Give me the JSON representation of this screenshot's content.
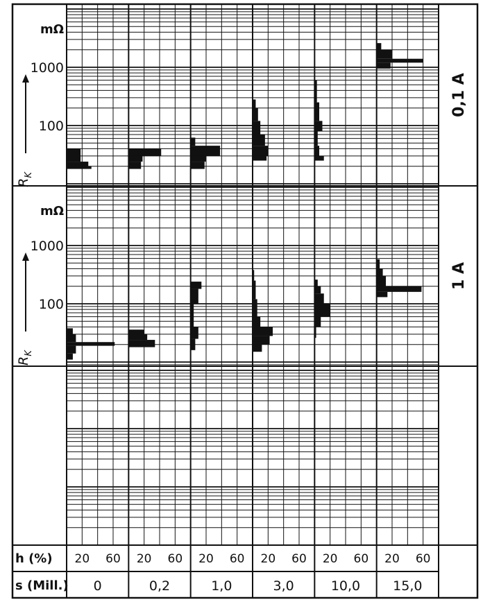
{
  "chart_data": {
    "type": "bar",
    "description_note": "",
    "y_scale": "log",
    "y_unit": "mΩ",
    "y_axis_label": "R",
    "y_axis_label_sub": "K",
    "y_ticks": [
      "1000",
      "100"
    ],
    "x_row_labels": {
      "h": "h (%)",
      "s": "s (Mill.)"
    },
    "h_ticks": [
      "20",
      "60"
    ],
    "groups": [
      "0",
      "0,2",
      "1,0",
      "3,0",
      "10,0",
      "15,0"
    ],
    "panels": [
      {
        "current": "0,1 A",
        "histograms": [
          {
            "group": "0",
            "bins": [
              [
                24,
                40,
                18
              ],
              [
                20,
                24,
                28
              ],
              [
                18,
                20,
                32
              ]
            ]
          },
          {
            "group": "0,2",
            "bins": [
              [
                30,
                40,
                42
              ],
              [
                24,
                30,
                18
              ],
              [
                18,
                24,
                16
              ]
            ]
          },
          {
            "group": "1,0",
            "bins": [
              [
                45,
                62,
                6
              ],
              [
                30,
                45,
                38
              ],
              [
                24,
                30,
                20
              ],
              [
                18,
                24,
                18
              ]
            ]
          },
          {
            "group": "3,0",
            "bins": [
              [
                200,
                280,
                4
              ],
              [
                120,
                200,
                7
              ],
              [
                70,
                120,
                10
              ],
              [
                45,
                70,
                16
              ],
              [
                30,
                45,
                20
              ],
              [
                25,
                30,
                18
              ]
            ]
          },
          {
            "group": "10,0",
            "bins": [
              [
                250,
                600,
                3
              ],
              [
                120,
                250,
                6
              ],
              [
                80,
                120,
                10
              ],
              [
                45,
                80,
                4
              ],
              [
                30,
                45,
                6
              ],
              [
                25,
                30,
                12
              ]
            ]
          },
          {
            "group": "15,0",
            "bins": [
              [
                2000,
                2600,
                6
              ],
              [
                1400,
                2000,
                20
              ],
              [
                1200,
                1400,
                60
              ],
              [
                950,
                1200,
                18
              ]
            ]
          }
        ]
      },
      {
        "current": "1 A",
        "histograms": [
          {
            "group": "0",
            "bins": [
              [
                30,
                38,
                8
              ],
              [
                22,
                30,
                12
              ],
              [
                19,
                22,
                62
              ],
              [
                14,
                19,
                12
              ],
              [
                11,
                14,
                8
              ]
            ]
          },
          {
            "group": "0,2",
            "bins": [
              [
                30,
                36,
                20
              ],
              [
                24,
                30,
                24
              ],
              [
                18,
                24,
                34
              ]
            ]
          },
          {
            "group": "1,0",
            "bins": [
              [
                180,
                240,
                14
              ],
              [
                100,
                180,
                10
              ],
              [
                70,
                100,
                4
              ],
              [
                40,
                70,
                4
              ],
              [
                25,
                40,
                10
              ],
              [
                16,
                25,
                6
              ]
            ]
          },
          {
            "group": "3,0",
            "bins": [
              [
                250,
                380,
                2
              ],
              [
                120,
                250,
                4
              ],
              [
                60,
                120,
                6
              ],
              [
                40,
                60,
                10
              ],
              [
                28,
                40,
                26
              ],
              [
                20,
                28,
                22
              ],
              [
                15,
                20,
                12
              ]
            ]
          },
          {
            "group": "10,0",
            "bins": [
              [
                200,
                260,
                4
              ],
              [
                150,
                200,
                8
              ],
              [
                100,
                150,
                12
              ],
              [
                60,
                100,
                20
              ],
              [
                40,
                60,
                8
              ],
              [
                26,
                40,
                2
              ]
            ]
          },
          {
            "group": "15,0",
            "bins": [
              [
                400,
                580,
                4
              ],
              [
                300,
                400,
                8
              ],
              [
                200,
                300,
                12
              ],
              [
                160,
                200,
                58
              ],
              [
                130,
                160,
                14
              ]
            ]
          }
        ]
      },
      {
        "current": "",
        "histograms": []
      }
    ]
  }
}
